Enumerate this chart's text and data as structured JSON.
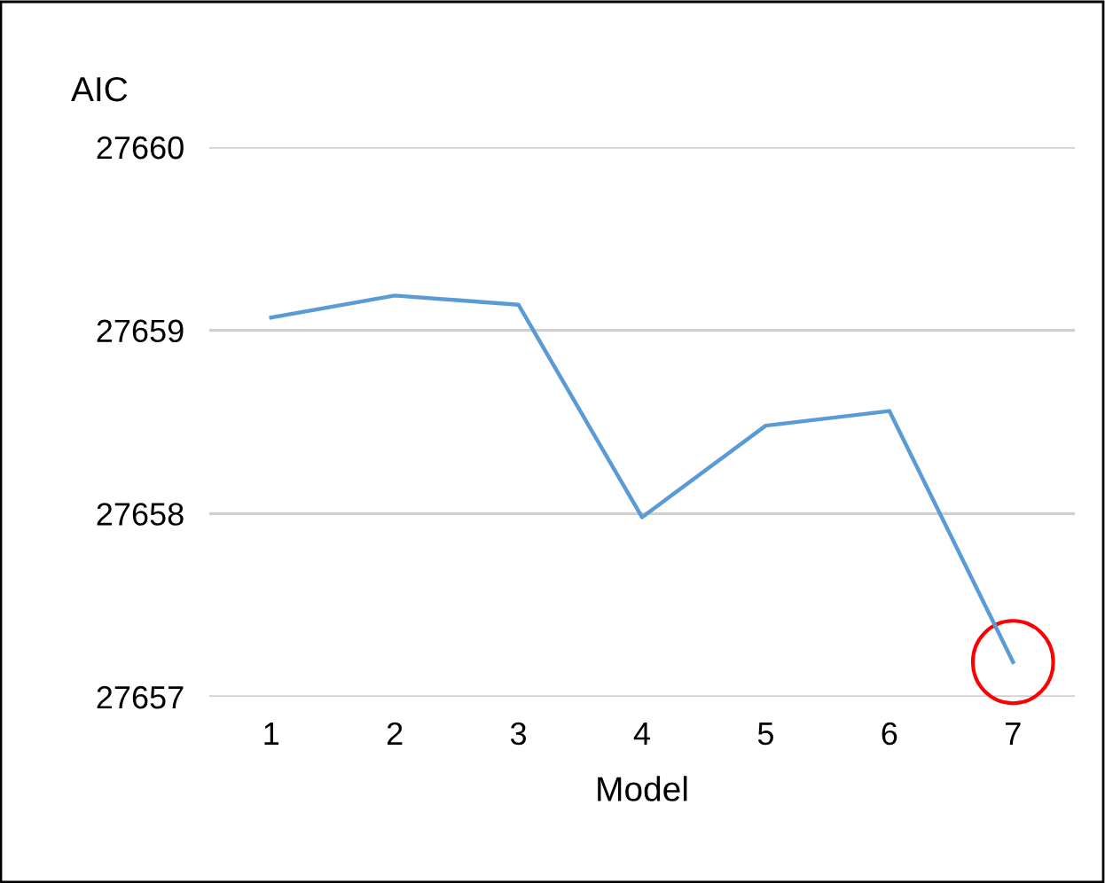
{
  "chart_data": {
    "type": "line",
    "ylabel": "AIC",
    "xlabel": "Model",
    "categories": [
      "1",
      "2",
      "3",
      "4",
      "5",
      "6",
      "7"
    ],
    "series": [
      {
        "color": "#5b9bd5",
        "values": [
          27659.07,
          27659.19,
          27659.14,
          27657.98,
          27658.48,
          27658.56,
          27657.19
        ]
      }
    ],
    "ylim": [
      27657,
      27660
    ],
    "yticks": [
      27657,
      27658,
      27659,
      27660
    ],
    "grid": "y",
    "legend": false,
    "marker": "none",
    "line_style": "solid"
  }
}
